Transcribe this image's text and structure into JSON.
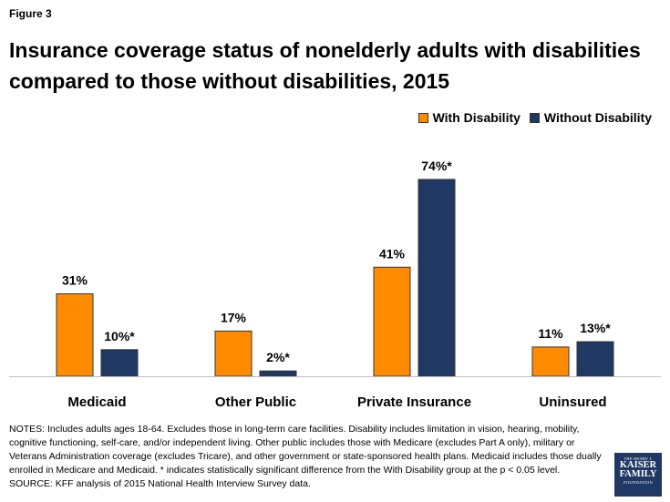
{
  "figure_label": "Figure 3",
  "title": "Insurance coverage status of nonelderly adults with disabilities compared to those without disabilities, 2015",
  "notes": "NOTES: Includes adults ages 18-64. Excludes those in long-term care facilities. Disability includes limitation in vision, hearing, mobility, cognitive functioning, self-care, and/or independent living. Other public includes those with Medicare (excludes Part A only), military or Veterans Administration coverage (excludes Tricare), and other government or state-sponsored health plans. Medicaid includes those dually enrolled in Medicare and Medicaid. * indicates statistically significant difference from the With Disability group at the p < 0.05 level. SOURCE: KFF analysis of 2015 National Health Interview Survey data.",
  "logo": {
    "line1": "THE HENRY J.",
    "line2": "KAISER",
    "line3": "FAMILY",
    "line4": "FOUNDATION"
  },
  "colors": {
    "with_disability": "#ff8c00",
    "without_disability": "#1f3864"
  },
  "chart_data": {
    "type": "bar",
    "categories": [
      "Medicaid",
      "Other Public",
      "Private Insurance",
      "Uninsured"
    ],
    "series": [
      {
        "name": "With Disability",
        "values": [
          31,
          17,
          41,
          11
        ],
        "labels": [
          "31%",
          "17%",
          "41%",
          "11%"
        ]
      },
      {
        "name": "Without Disability",
        "values": [
          10,
          2,
          74,
          13
        ],
        "labels": [
          "10%*",
          "2%*",
          "74%*",
          "13%*"
        ]
      }
    ],
    "ylim": [
      0,
      80
    ],
    "grid": false,
    "legend_position": "top-right"
  }
}
